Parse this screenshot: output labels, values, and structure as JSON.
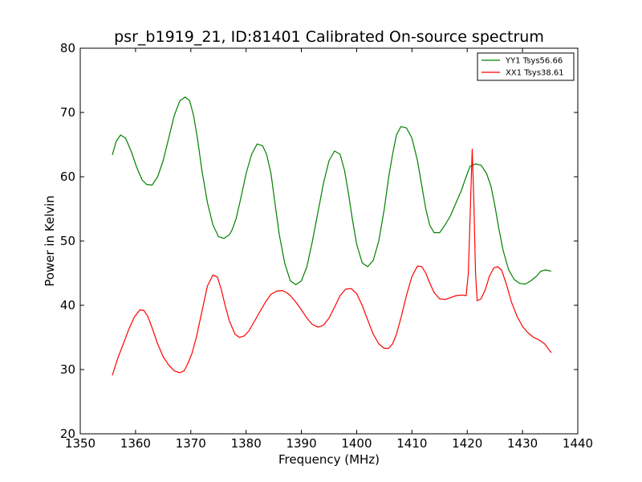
{
  "chart_data": {
    "type": "line",
    "title": "psr_b1919_21, ID:81401 Calibrated On-source spectrum",
    "xlabel": "Frequency (MHz)",
    "ylabel": "Power in Kelvin",
    "xlim": [
      1350,
      1440
    ],
    "ylim": [
      20,
      80
    ],
    "xticks": [
      1350,
      1360,
      1370,
      1380,
      1390,
      1400,
      1410,
      1420,
      1430,
      1440
    ],
    "yticks": [
      20,
      30,
      40,
      50,
      60,
      70,
      80
    ],
    "grid": false,
    "legend_position": "top-right",
    "series": [
      {
        "name": "YY1 Tsys56.66",
        "color": "#008000",
        "x": [
          1355.8,
          1356.5,
          1357.3,
          1358.2,
          1359.2,
          1360.2,
          1361.2,
          1362.0,
          1363.0,
          1364.0,
          1365.0,
          1366.0,
          1367.0,
          1368.0,
          1369.0,
          1369.8,
          1370.5,
          1371.2,
          1372.0,
          1373.0,
          1374.0,
          1375.0,
          1376.0,
          1377.0,
          1377.5,
          1378.2,
          1379.0,
          1380.0,
          1381.0,
          1382.0,
          1383.0,
          1383.7,
          1384.5,
          1385.2,
          1386.0,
          1387.0,
          1388.0,
          1389.0,
          1390.0,
          1391.0,
          1392.0,
          1393.0,
          1394.0,
          1395.0,
          1396.0,
          1397.0,
          1397.8,
          1398.5,
          1399.2,
          1400.0,
          1401.0,
          1402.0,
          1403.0,
          1404.0,
          1405.0,
          1405.8,
          1406.5,
          1407.2,
          1408.0,
          1409.0,
          1410.0,
          1411.0,
          1411.8,
          1412.5,
          1413.2,
          1414.0,
          1415.0,
          1416.0,
          1417.0,
          1418.0,
          1419.0,
          1419.8,
          1420.5,
          1421.5,
          1422.5,
          1423.5,
          1424.3,
          1425.0,
          1425.7,
          1426.5,
          1427.5,
          1428.5,
          1429.5,
          1430.5,
          1431.5,
          1432.5,
          1433.3,
          1434.2,
          1435.2
        ],
        "y": [
          63.4,
          65.5,
          66.5,
          66.0,
          64.0,
          61.5,
          59.5,
          58.8,
          58.7,
          60.0,
          62.5,
          66.0,
          69.5,
          71.8,
          72.4,
          71.8,
          69.5,
          66.0,
          61.0,
          56.0,
          52.5,
          50.7,
          50.4,
          51.0,
          51.8,
          53.5,
          56.5,
          60.5,
          63.5,
          65.1,
          64.8,
          63.5,
          60.5,
          56.0,
          51.0,
          46.5,
          43.8,
          43.2,
          43.8,
          46.0,
          50.0,
          54.5,
          59.0,
          62.5,
          64.0,
          63.5,
          61.0,
          57.5,
          53.5,
          49.5,
          46.6,
          46.0,
          47.0,
          50.0,
          55.0,
          60.0,
          63.5,
          66.5,
          67.8,
          67.6,
          66.0,
          62.5,
          58.5,
          55.0,
          52.5,
          51.3,
          51.3,
          52.5,
          54.0,
          56.0,
          58.0,
          60.0,
          61.6,
          62.0,
          61.8,
          60.5,
          58.5,
          55.5,
          52.0,
          48.5,
          45.5,
          44.0,
          43.4,
          43.3,
          43.8,
          44.5,
          45.3,
          45.5,
          45.3
        ],
        "x_note": "",
        "y_note": ""
      },
      {
        "name": "XX1 Tsys38.61",
        "color": "#ff0000",
        "x": [
          1355.8,
          1356.8,
          1357.8,
          1358.8,
          1359.8,
          1360.8,
          1361.5,
          1362.2,
          1363.0,
          1364.0,
          1365.0,
          1366.0,
          1367.0,
          1368.0,
          1368.8,
          1369.5,
          1370.2,
          1371.0,
          1372.0,
          1373.0,
          1374.0,
          1374.8,
          1375.5,
          1376.2,
          1377.0,
          1378.0,
          1378.8,
          1379.6,
          1380.5,
          1381.5,
          1382.5,
          1383.5,
          1384.5,
          1385.5,
          1386.5,
          1387.3,
          1388.0,
          1389.0,
          1390.0,
          1391.0,
          1392.0,
          1393.0,
          1394.0,
          1395.0,
          1396.0,
          1397.0,
          1398.0,
          1399.0,
          1400.0,
          1401.0,
          1402.0,
          1403.0,
          1404.0,
          1405.0,
          1405.8,
          1406.5,
          1407.2,
          1408.0,
          1409.0,
          1410.0,
          1411.0,
          1411.8,
          1412.5,
          1413.2,
          1414.0,
          1415.0,
          1416.0,
          1417.0,
          1418.0,
          1419.0,
          1419.8,
          1420.2,
          1420.6,
          1420.9,
          1421.2,
          1421.5,
          1421.8,
          1422.5,
          1423.3,
          1424.0,
          1424.8,
          1425.5,
          1426.2,
          1427.0,
          1428.0,
          1429.0,
          1430.0,
          1431.0,
          1432.0,
          1433.0,
          1434.0,
          1435.2
        ],
        "y": [
          29.1,
          31.8,
          34.0,
          36.3,
          38.2,
          39.3,
          39.2,
          38.3,
          36.5,
          34.0,
          32.0,
          30.7,
          29.8,
          29.5,
          29.8,
          31.0,
          32.5,
          35.0,
          39.0,
          43.0,
          44.7,
          44.4,
          42.5,
          40.0,
          37.5,
          35.5,
          35.0,
          35.2,
          36.0,
          37.5,
          39.0,
          40.5,
          41.7,
          42.2,
          42.3,
          42.0,
          41.5,
          40.5,
          39.3,
          38.0,
          37.0,
          36.6,
          36.9,
          38.0,
          39.7,
          41.5,
          42.5,
          42.6,
          41.8,
          40.0,
          37.7,
          35.5,
          34.0,
          33.3,
          33.3,
          34.0,
          35.5,
          38.0,
          41.5,
          44.5,
          46.1,
          46.0,
          45.0,
          43.5,
          42.0,
          41.0,
          40.9,
          41.2,
          41.5,
          41.6,
          41.5,
          45.0,
          56.0,
          64.3,
          56.0,
          45.0,
          40.7,
          41.0,
          42.5,
          44.5,
          45.8,
          46.0,
          45.5,
          43.5,
          40.5,
          38.3,
          36.7,
          35.7,
          35.0,
          34.6,
          34.0,
          32.6
        ]
      }
    ]
  }
}
